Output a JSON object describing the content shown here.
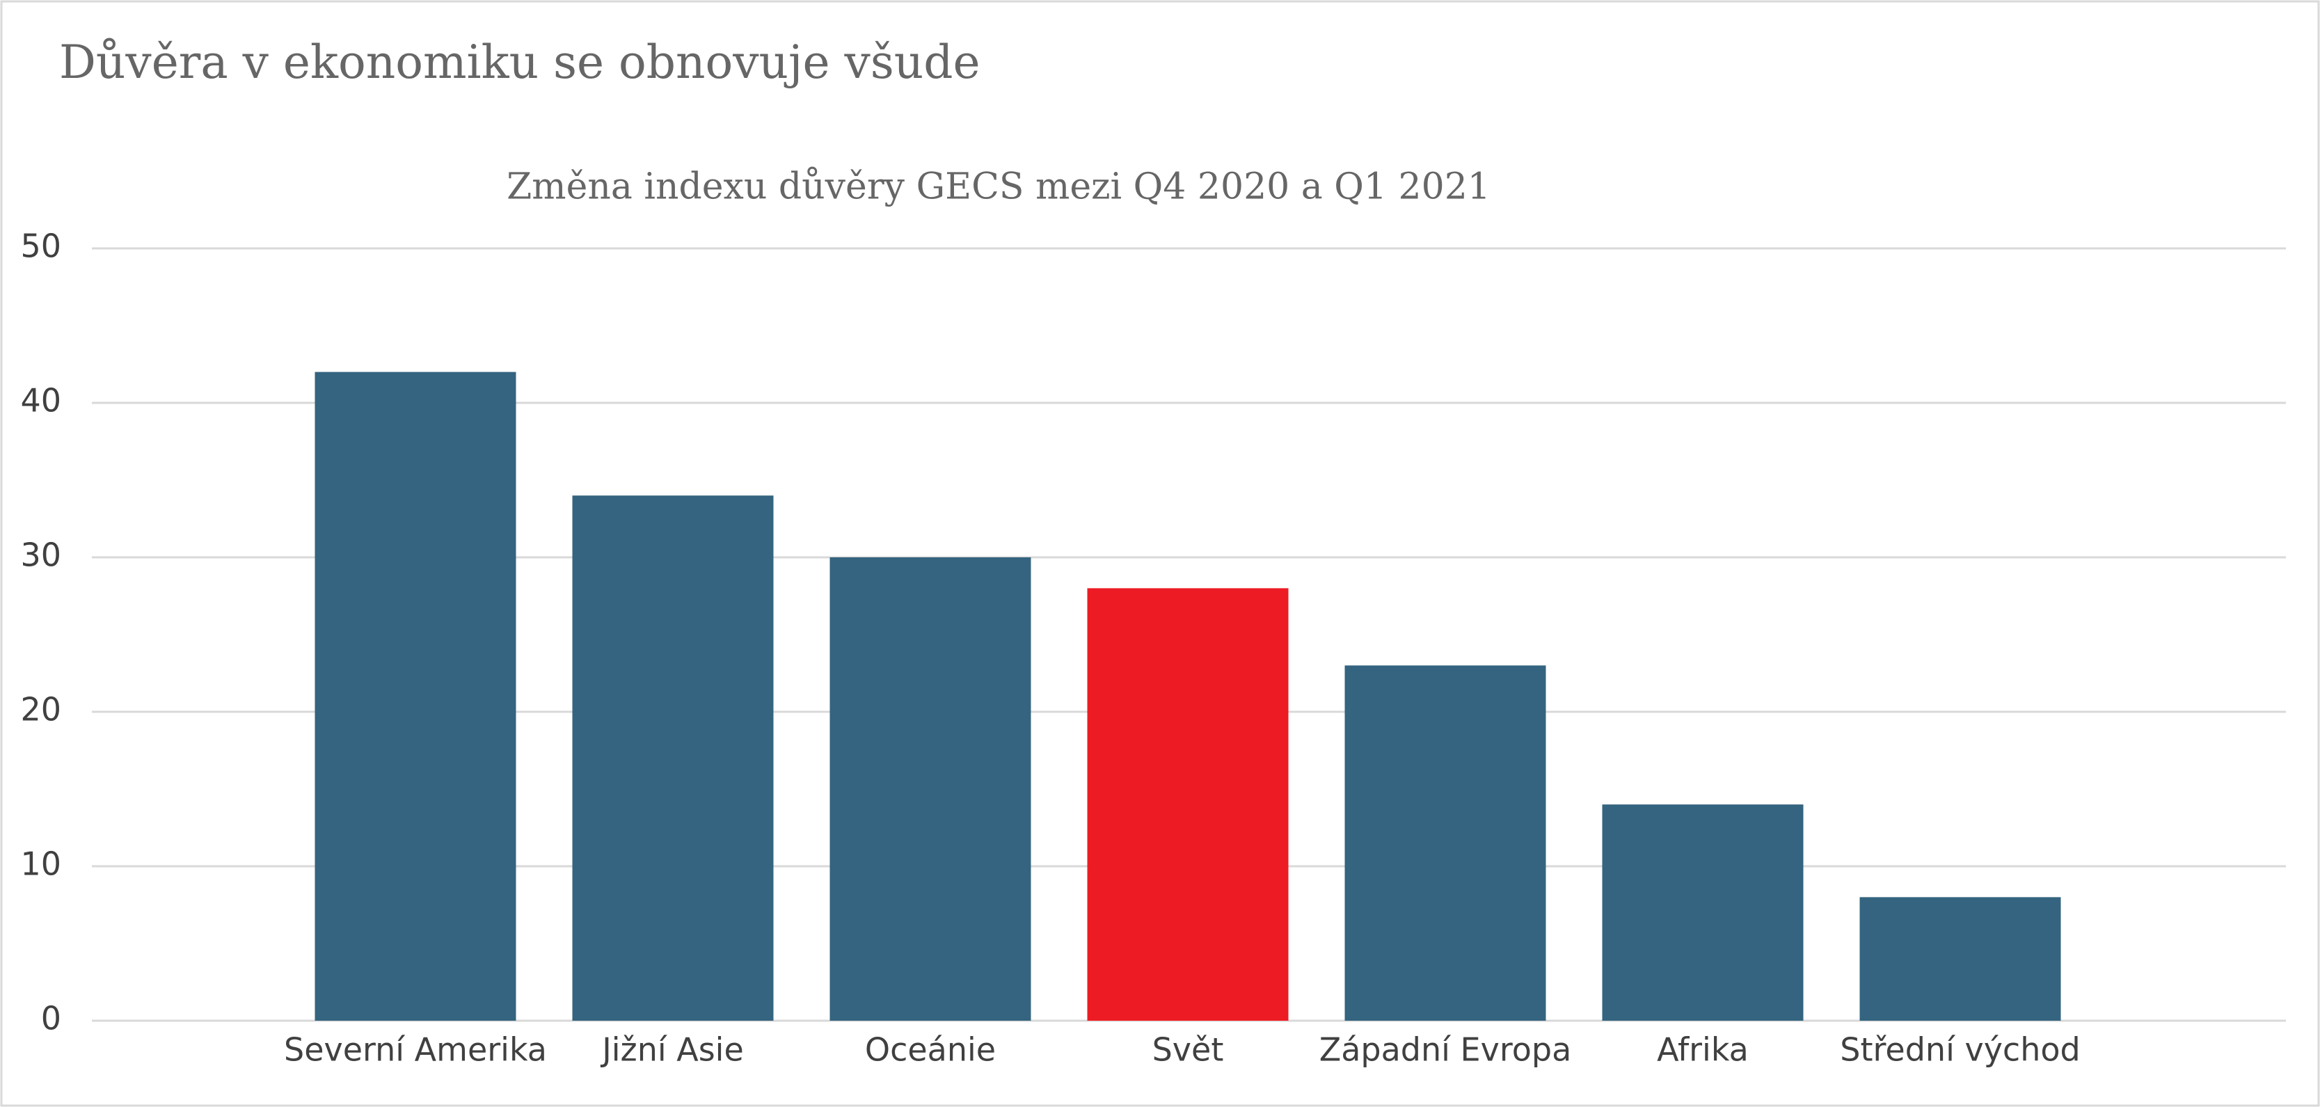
{
  "chart_data": {
    "type": "bar",
    "title": "Důvěra v ekonomiku se obnovuje všude",
    "subtitle": "Změna indexu důvěry GECS mezi Q4 2020 a Q1 2021",
    "categories": [
      "Severní Amerika",
      "Jižní Asie",
      "Oceánie",
      "Svět",
      "Západní Evropa",
      "Afrika",
      "Střední východ"
    ],
    "values": [
      42,
      34,
      30,
      28,
      23,
      14,
      8
    ],
    "colors": [
      "#34647f",
      "#34647f",
      "#34647f",
      "#ed1c24",
      "#34647f",
      "#34647f",
      "#34647f"
    ],
    "ylim": [
      0,
      50
    ],
    "yticks": [
      0,
      10,
      20,
      30,
      40,
      50
    ],
    "grid": true
  }
}
